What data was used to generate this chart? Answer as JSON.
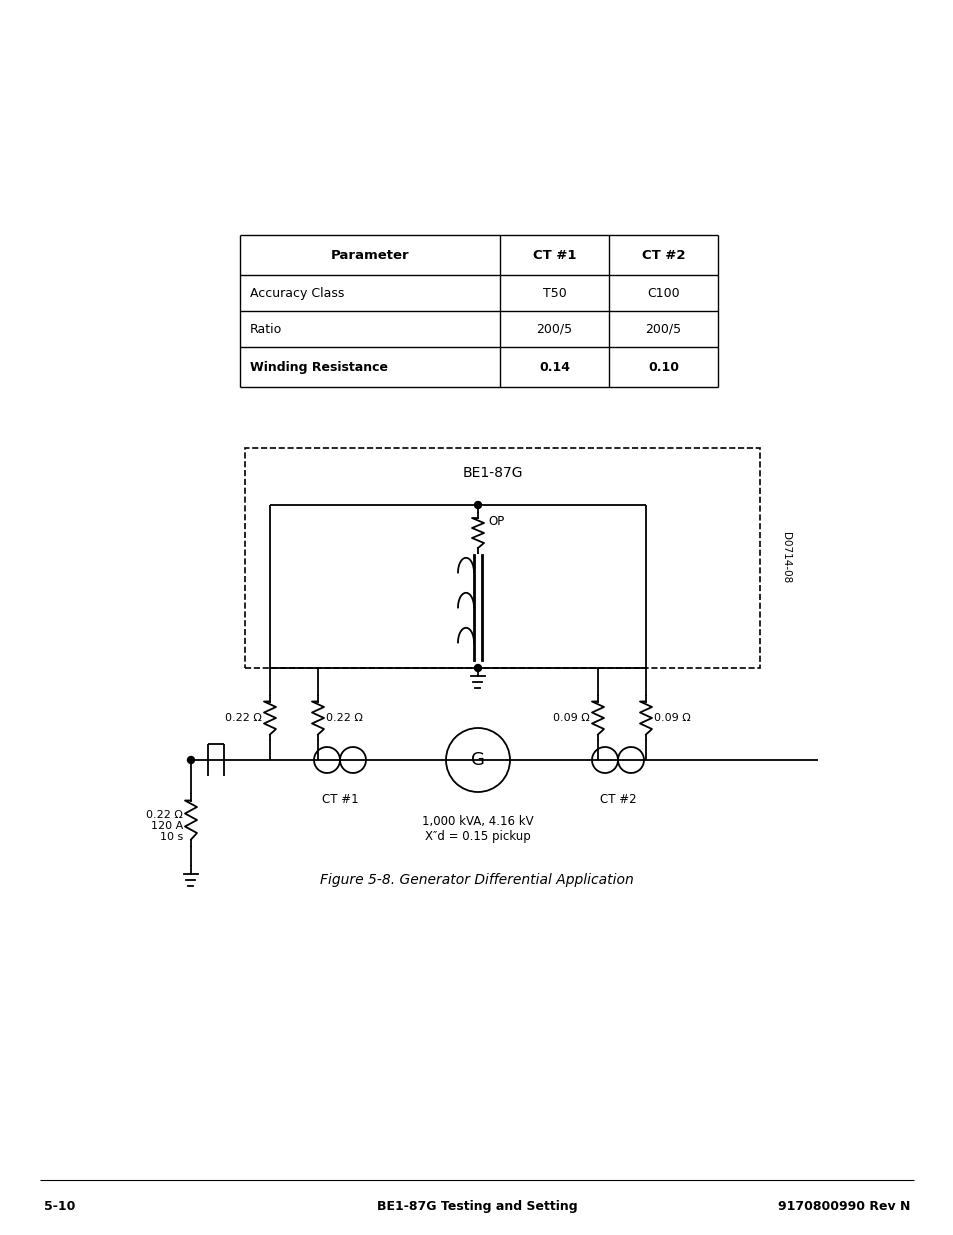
{
  "title": "Figure 5-8. Generator Differential Application",
  "table": {
    "headers": [
      "Parameter",
      "CT #1",
      "CT #2"
    ],
    "rows": [
      [
        "Accuracy Class",
        "T50",
        "C100"
      ],
      [
        "Ratio",
        "200/5",
        "200/5"
      ],
      [
        "Winding Resistance",
        "0.14",
        "0.10"
      ]
    ]
  },
  "be1_label": "BE1-87G",
  "op_label": "OP",
  "d_label": "D0714-08",
  "ct1_label": "CT #1",
  "ct2_label": "CT #2",
  "gen_label": "G",
  "gen_info_line1": "1,000 kVA, 4.16 kV",
  "gen_info_line2": "X″d = 0.15 pickup",
  "r1_label": "0.22 Ω",
  "r2_label": "0.22 Ω",
  "r3_label": "0.09 Ω",
  "r4_label": "0.09 Ω",
  "r5_line1": "0.22 Ω",
  "r5_line2": "120 A",
  "r5_line3": "10 s",
  "footer_left": "5-10",
  "footer_center": "BE1-87G Testing and Setting",
  "footer_right": "9170800990 Rev N",
  "bg_color": "#ffffff",
  "line_color": "#000000"
}
